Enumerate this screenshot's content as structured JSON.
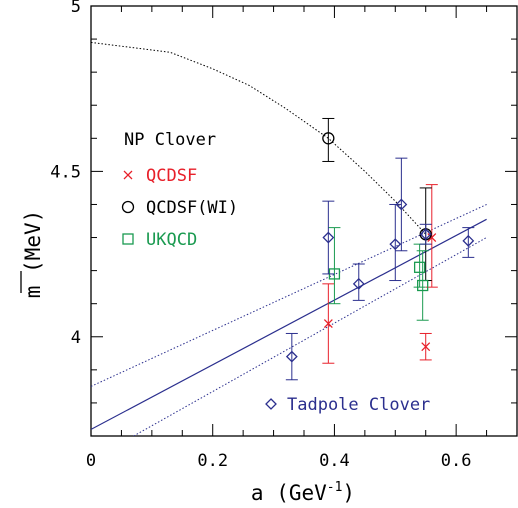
{
  "chart_data": {
    "type": "scatter",
    "xlabel": "a (GeV",
    "xlabel_sup": "-1",
    "xlabel_close": ")",
    "ylabel": "m (MeV)",
    "xlim": [
      0,
      0.7
    ],
    "ylim": [
      3.7,
      5.0
    ],
    "x_ticks": [
      0,
      0.2,
      0.4,
      0.6
    ],
    "x_tick_labels": [
      "0",
      "0.2",
      "0.4",
      "0.6"
    ],
    "y_ticks": [
      4.0,
      4.5,
      5.0
    ],
    "y_tick_labels": [
      "4",
      "4.5",
      "5"
    ],
    "legend_header": "NP Clover",
    "series": [
      {
        "name": "QCDSF",
        "marker": "cross",
        "color": "#e8202a",
        "points": [
          {
            "x": 0.39,
            "y": 4.04,
            "ylo": 3.92,
            "yhi": 4.16
          },
          {
            "x": 0.55,
            "y": 3.97,
            "ylo": 3.93,
            "yhi": 4.01
          },
          {
            "x": 0.56,
            "y": 4.3,
            "ylo": 4.15,
            "yhi": 4.46
          }
        ]
      },
      {
        "name": "QCDSF(WI)",
        "marker": "circle",
        "color": "#000000",
        "points": [
          {
            "x": 0.39,
            "y": 4.6,
            "ylo": 4.53,
            "yhi": 4.66
          },
          {
            "x": 0.55,
            "y": 4.31,
            "ylo": 4.17,
            "yhi": 4.45
          }
        ]
      },
      {
        "name": "UKQCD",
        "marker": "square",
        "color": "#1a9a50",
        "points": [
          {
            "x": 0.4,
            "y": 4.19,
            "ylo": 4.1,
            "yhi": 4.33
          },
          {
            "x": 0.54,
            "y": 4.21,
            "ylo": 4.15,
            "yhi": 4.28
          },
          {
            "x": 0.545,
            "y": 4.155,
            "ylo": 4.05,
            "yhi": 4.26
          }
        ]
      },
      {
        "name": "Tadpole Clover",
        "marker": "diamond",
        "color": "#2b2f8e",
        "points": [
          {
            "x": 0.33,
            "y": 3.94,
            "ylo": 3.87,
            "yhi": 4.01
          },
          {
            "x": 0.39,
            "y": 4.3,
            "ylo": 4.19,
            "yhi": 4.41
          },
          {
            "x": 0.44,
            "y": 4.16,
            "ylo": 4.11,
            "yhi": 4.22
          },
          {
            "x": 0.5,
            "y": 4.28,
            "ylo": 4.17,
            "yhi": 4.4
          },
          {
            "x": 0.51,
            "y": 4.4,
            "ylo": 4.26,
            "yhi": 4.54
          },
          {
            "x": 0.55,
            "y": 4.31,
            "ylo": 4.28,
            "yhi": 4.34
          },
          {
            "x": 0.62,
            "y": 4.29,
            "ylo": 4.24,
            "yhi": 4.33
          }
        ]
      }
    ],
    "fit_line": {
      "color": "#2b2f8e",
      "points": [
        [
          0,
          3.72
        ],
        [
          0.65,
          4.355
        ]
      ]
    },
    "fit_band_upper": {
      "color": "#2b2f8e",
      "points": [
        [
          0,
          3.85
        ],
        [
          0.65,
          4.4
        ]
      ]
    },
    "fit_band_lower": {
      "color": "#2b2f8e",
      "points": [
        [
          0.07,
          3.7
        ],
        [
          0.65,
          4.3
        ]
      ]
    },
    "dotted_curve": {
      "color": "#000000",
      "points": [
        [
          0,
          4.89
        ],
        [
          0.13,
          4.86
        ],
        [
          0.2,
          4.81
        ],
        [
          0.26,
          4.76
        ],
        [
          0.32,
          4.69
        ],
        [
          0.39,
          4.6
        ],
        [
          0.45,
          4.5
        ],
        [
          0.5,
          4.41
        ],
        [
          0.55,
          4.31
        ]
      ]
    }
  }
}
